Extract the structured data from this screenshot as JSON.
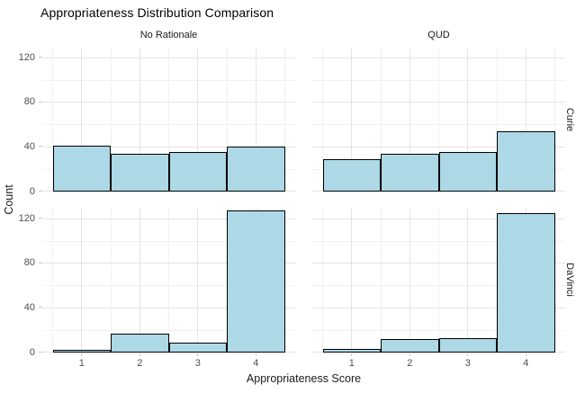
{
  "chart_data": {
    "type": "bar",
    "subtype": "faceted-histogram",
    "title": "Appropriateness Distribution Comparison",
    "xlabel": "Appropriateness Score",
    "ylabel": "Count",
    "facet_columns": [
      "No Rationale",
      "QUD"
    ],
    "facet_rows": [
      "Curie",
      "DaVinci"
    ],
    "categories": [
      1,
      2,
      3,
      4
    ],
    "y_ticks": [
      0,
      40,
      80,
      120
    ],
    "y_minor_ticks": [
      20,
      60,
      100
    ],
    "ylim": [
      0,
      130
    ],
    "grid": true,
    "legend": "none",
    "series": [
      {
        "row": "Curie",
        "col": "No Rationale",
        "values": [
          40,
          33,
          34,
          39
        ]
      },
      {
        "row": "Curie",
        "col": "QUD",
        "values": [
          28,
          33,
          34,
          53
        ]
      },
      {
        "row": "DaVinci",
        "col": "No Rationale",
        "values": [
          1,
          16,
          8,
          126
        ]
      },
      {
        "row": "DaVinci",
        "col": "QUD",
        "values": [
          2,
          11,
          12,
          124
        ]
      }
    ],
    "colors": {
      "bar_fill": "#ADD8E6",
      "bar_stroke": "#000000",
      "grid_major": "#E4E4E4",
      "grid_minor": "#F2F2F2",
      "tick_mark": "#C9C9C9",
      "tick_text": "#4D4D4D",
      "background": "#FFFFFF"
    }
  }
}
